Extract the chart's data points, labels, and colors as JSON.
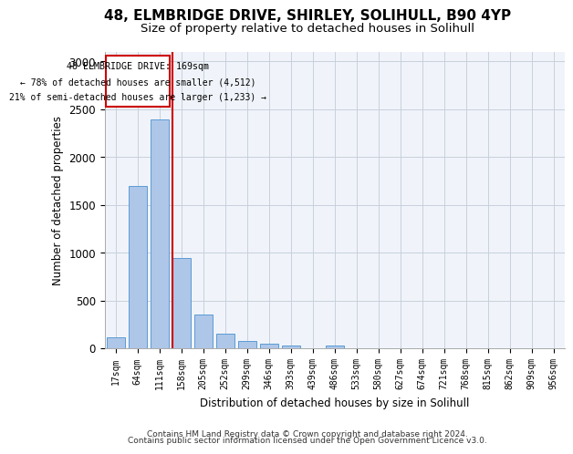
{
  "title_line1": "48, ELMBRIDGE DRIVE, SHIRLEY, SOLIHULL, B90 4YP",
  "title_line2": "Size of property relative to detached houses in Solihull",
  "xlabel": "Distribution of detached houses by size in Solihull",
  "ylabel": "Number of detached properties",
  "footer_line1": "Contains HM Land Registry data © Crown copyright and database right 2024.",
  "footer_line2": "Contains public sector information licensed under the Open Government Licence v3.0.",
  "bar_labels": [
    "17sqm",
    "64sqm",
    "111sqm",
    "158sqm",
    "205sqm",
    "252sqm",
    "299sqm",
    "346sqm",
    "393sqm",
    "439sqm",
    "486sqm",
    "533sqm",
    "580sqm",
    "627sqm",
    "674sqm",
    "721sqm",
    "768sqm",
    "815sqm",
    "862sqm",
    "909sqm",
    "956sqm"
  ],
  "bar_values": [
    110,
    1700,
    2390,
    940,
    350,
    150,
    75,
    50,
    30,
    0,
    30,
    0,
    0,
    0,
    0,
    0,
    0,
    0,
    0,
    0,
    0
  ],
  "bar_color": "#aec6e8",
  "bar_edge_color": "#5b9bd5",
  "annotation_box_text_line1": "48 ELMBRIDGE DRIVE: 169sqm",
  "annotation_box_text_line2": "← 78% of detached houses are smaller (4,512)",
  "annotation_box_text_line3": "21% of semi-detached houses are larger (1,233) →",
  "marker_color": "#cc0000",
  "ylim": [
    0,
    3100
  ],
  "yticks": [
    0,
    500,
    1000,
    1500,
    2000,
    2500,
    3000
  ],
  "background_color": "#f0f4fa",
  "grid_color": "#c8d0dc",
  "title1_fontsize": 11,
  "title2_fontsize": 9.5,
  "footer_fontsize": 6.5
}
